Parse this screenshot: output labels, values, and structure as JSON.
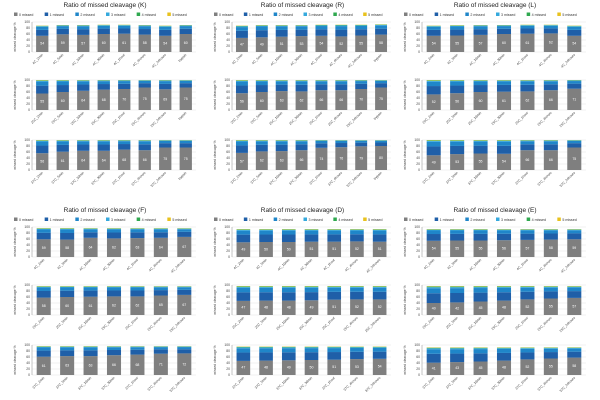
{
  "colors": {
    "missed_0": "#7f7f7f",
    "missed_1": "#1f5fa8",
    "missed_2": "#1f86c9",
    "missed_3": "#35a9dd",
    "missed_4": "#2fa84f",
    "missed_5": "#e8c21e",
    "gridline": "#dddddd",
    "axis": "#888888"
  },
  "chart_data": [
    {
      "type": "bar",
      "title": "Ratio of missed cleavage (K)",
      "legend_labels": [
        "0 missed",
        "1 missed",
        "2 missed",
        "3 missed",
        "4 missed",
        "5 missed"
      ],
      "ylabel": "missed cleavage %",
      "ylim": [
        0,
        100
      ],
      "rows": [
        {
          "categories": [
            "4C_2min",
            "4C_5min",
            "4C_10min",
            "4C_30min",
            "4C_1hour",
            "4C_4hours",
            "4C_24hours",
            "trypsin"
          ],
          "missed_0": [
            54,
            59,
            57,
            60,
            61,
            58,
            54,
            60
          ],
          "stacked_total": [
            88,
            90,
            90,
            91,
            91,
            90,
            88,
            90
          ]
        },
        {
          "categories": [
            "25C_2min",
            "25C_5min",
            "25C_10min",
            "25C_30min",
            "25C_1hour",
            "25C_4hours",
            "25C_24hours",
            "trypsin"
          ],
          "missed_0": [
            55,
            60,
            64,
            68,
            70,
            75,
            69,
            75
          ],
          "stacked_total": [
            100,
            100,
            100,
            100,
            100,
            100,
            100,
            100
          ]
        },
        {
          "categories": [
            "37C_2min",
            "37C_5min",
            "37C_10min",
            "37C_30min",
            "37C_1hour",
            "37C_4hours",
            "37C_24hours",
            "trypsin"
          ],
          "missed_0": [
            56,
            61,
            64,
            64,
            68,
            66,
            75,
            75
          ],
          "stacked_total": [
            100,
            100,
            100,
            100,
            100,
            100,
            100,
            100
          ]
        }
      ]
    },
    {
      "type": "bar",
      "title": "Ratio of missed cleavage (R)",
      "legend_labels": [
        "0 missed",
        "1 missed",
        "2 missed",
        "3 missed",
        "4 missed",
        "5 missed"
      ],
      "ylabel": "missed cleavage %",
      "ylim": [
        0,
        100
      ],
      "rows": [
        {
          "categories": [
            "4C_2min",
            "4C_5min",
            "4C_10min",
            "4C_30min",
            "4C_1hour",
            "4C_4hours",
            "4C_24hours",
            "trypsin"
          ],
          "missed_0": [
            47,
            49,
            51,
            53,
            54,
            52,
            55,
            58
          ],
          "stacked_total": [
            88,
            90,
            90,
            90,
            91,
            91,
            91,
            92
          ]
        },
        {
          "categories": [
            "25C_2min",
            "25C_5min",
            "25C_10min",
            "25C_30min",
            "25C_1hour",
            "25C_4hours",
            "25C_24hours",
            "trypsin"
          ],
          "missed_0": [
            56,
            60,
            63,
            62,
            66,
            66,
            70,
            75
          ],
          "stacked_total": [
            100,
            100,
            100,
            100,
            100,
            100,
            100,
            100
          ]
        },
        {
          "categories": [
            "37C_2min",
            "37C_5min",
            "37C_10min",
            "37C_30min",
            "37C_1hour",
            "37C_4hours",
            "37C_24hours",
            "trypsin"
          ],
          "missed_0": [
            57,
            62,
            63,
            66,
            74,
            76,
            79,
            80
          ],
          "stacked_total": [
            100,
            100,
            100,
            100,
            100,
            100,
            100,
            100
          ]
        }
      ]
    },
    {
      "type": "bar",
      "title": "Ratio of missed cleavage (L)",
      "legend_labels": [
        "0 missed",
        "1 missed",
        "2 missed",
        "3 missed",
        "4 missed",
        "5 missed"
      ],
      "ylabel": "missed cleavage %",
      "ylim": [
        0,
        100
      ],
      "rows": [
        {
          "categories": [
            "4C_2min",
            "4C_5min",
            "4C_10min",
            "4C_30min",
            "4C_1hour",
            "4C_4hours",
            "4C_24hours"
          ],
          "missed_0": [
            54,
            55,
            57,
            60,
            61,
            62,
            54
          ],
          "stacked_total": [
            88,
            89,
            90,
            90,
            91,
            91,
            88
          ]
        },
        {
          "categories": [
            "25C_2min",
            "25C_5min",
            "25C_10min",
            "25C_30min",
            "25C_1hour",
            "25C_4hours",
            "25C_24hours"
          ],
          "missed_0": [
            52,
            56,
            60,
            61,
            62,
            66,
            71
          ],
          "stacked_total": [
            100,
            100,
            100,
            100,
            100,
            100,
            100
          ]
        },
        {
          "categories": [
            "37C_2min",
            "37C_5min",
            "37C_10min",
            "37C_30min",
            "37C_1hour",
            "37C_4hours",
            "37C_24hours"
          ],
          "missed_0": [
            49,
            53,
            55,
            54,
            66,
            66,
            75
          ],
          "stacked_total": [
            100,
            100,
            100,
            100,
            100,
            100,
            100
          ]
        }
      ]
    },
    {
      "type": "bar",
      "title": "Ratio of missed cleavage (F)",
      "legend_labels": [
        "0 missed",
        "1 missed",
        "2 missed",
        "3 missed",
        "4 missed",
        "5 missed"
      ],
      "ylabel": "missed cleavage %",
      "ylim": [
        0,
        100
      ],
      "rows": [
        {
          "categories": [
            "4C_2min",
            "4C_5min",
            "4C_10min",
            "4C_30min",
            "4C_1hour",
            "4C_4hours",
            "4C_24hours"
          ],
          "missed_0": [
            59,
            58,
            64,
            62,
            63,
            64,
            67
          ],
          "stacked_total": [
            96,
            96,
            96,
            96,
            96,
            96,
            96
          ]
        },
        {
          "categories": [
            "25C_2min",
            "25C_5min",
            "25C_10min",
            "25C_30min",
            "25C_1hour",
            "25C_4hours",
            "25C_24hours"
          ],
          "missed_0": [
            58,
            60,
            61,
            62,
            62,
            65,
            67
          ],
          "stacked_total": [
            96,
            96,
            96,
            96,
            96,
            96,
            96
          ]
        },
        {
          "categories": [
            "37C_2min",
            "37C_5min",
            "37C_10min",
            "37C_30min",
            "37C_1hour",
            "37C_4hours",
            "37C_24hours"
          ],
          "missed_0": [
            61,
            63,
            63,
            66,
            68,
            71,
            72
          ],
          "stacked_total": [
            96,
            96,
            96,
            96,
            96,
            96,
            96
          ]
        }
      ]
    },
    {
      "type": "bar",
      "title": "Ratio of missed cleavage (D)",
      "legend_labels": [
        "0 missed",
        "1 missed",
        "2 missed",
        "3 missed",
        "4 missed",
        "5 missed"
      ],
      "ylabel": "missed cleavage %",
      "ylim": [
        0,
        100
      ],
      "rows": [
        {
          "categories": [
            "4C_2min",
            "4C_5min",
            "4C_10min",
            "4C_30min",
            "4C_1hour",
            "4C_4hours",
            "4C_24hours"
          ],
          "missed_0": [
            49,
            50,
            50,
            51,
            51,
            52,
            51
          ],
          "stacked_total": [
            93,
            93,
            93,
            93,
            93,
            93,
            93
          ]
        },
        {
          "categories": [
            "25C_2min",
            "25C_5min",
            "25C_10min",
            "25C_30min",
            "25C_1hour",
            "25C_4hours",
            "25C_24hours"
          ],
          "missed_0": [
            47,
            48,
            48,
            49,
            51,
            52,
            52
          ],
          "stacked_total": [
            96,
            96,
            96,
            96,
            96,
            96,
            96
          ]
        },
        {
          "categories": [
            "37C_2min",
            "37C_5min",
            "37C_10min",
            "37C_30min",
            "37C_1hour",
            "37C_4hours",
            "37C_24hours"
          ],
          "missed_0": [
            47,
            48,
            49,
            50,
            51,
            53,
            54
          ],
          "stacked_total": [
            95,
            95,
            95,
            95,
            95,
            95,
            95
          ]
        }
      ]
    },
    {
      "type": "bar",
      "title": "Ratio of missed cleavage (E)",
      "legend_labels": [
        "0 missed",
        "1 missed",
        "2 missed",
        "3 missed",
        "4 missed",
        "5 missed"
      ],
      "ylabel": "missed cleavage %",
      "ylim": [
        0,
        100
      ],
      "rows": [
        {
          "categories": [
            "4C_2min",
            "4C_5min",
            "4C_10min",
            "4C_30min",
            "4C_1hour",
            "4C_4hours",
            "4C_24hours"
          ],
          "missed_0": [
            54,
            55,
            55,
            56,
            57,
            58,
            59
          ],
          "stacked_total": [
            93,
            93,
            93,
            93,
            93,
            93,
            93
          ]
        },
        {
          "categories": [
            "25C_2min",
            "25C_5min",
            "25C_10min",
            "25C_30min",
            "25C_1hour",
            "25C_4hours",
            "25C_24hours"
          ],
          "missed_0": [
            40,
            42,
            45,
            48,
            52,
            55,
            57
          ],
          "stacked_total": [
            96,
            96,
            96,
            96,
            96,
            96,
            96
          ]
        },
        {
          "categories": [
            "37C_2min",
            "37C_5min",
            "37C_10min",
            "37C_30min",
            "37C_1hour",
            "37C_4hours",
            "37C_24hours"
          ],
          "missed_0": [
            41,
            43,
            45,
            48,
            52,
            55,
            58
          ],
          "stacked_total": [
            92,
            92,
            92,
            92,
            92,
            92,
            92
          ]
        }
      ]
    }
  ]
}
